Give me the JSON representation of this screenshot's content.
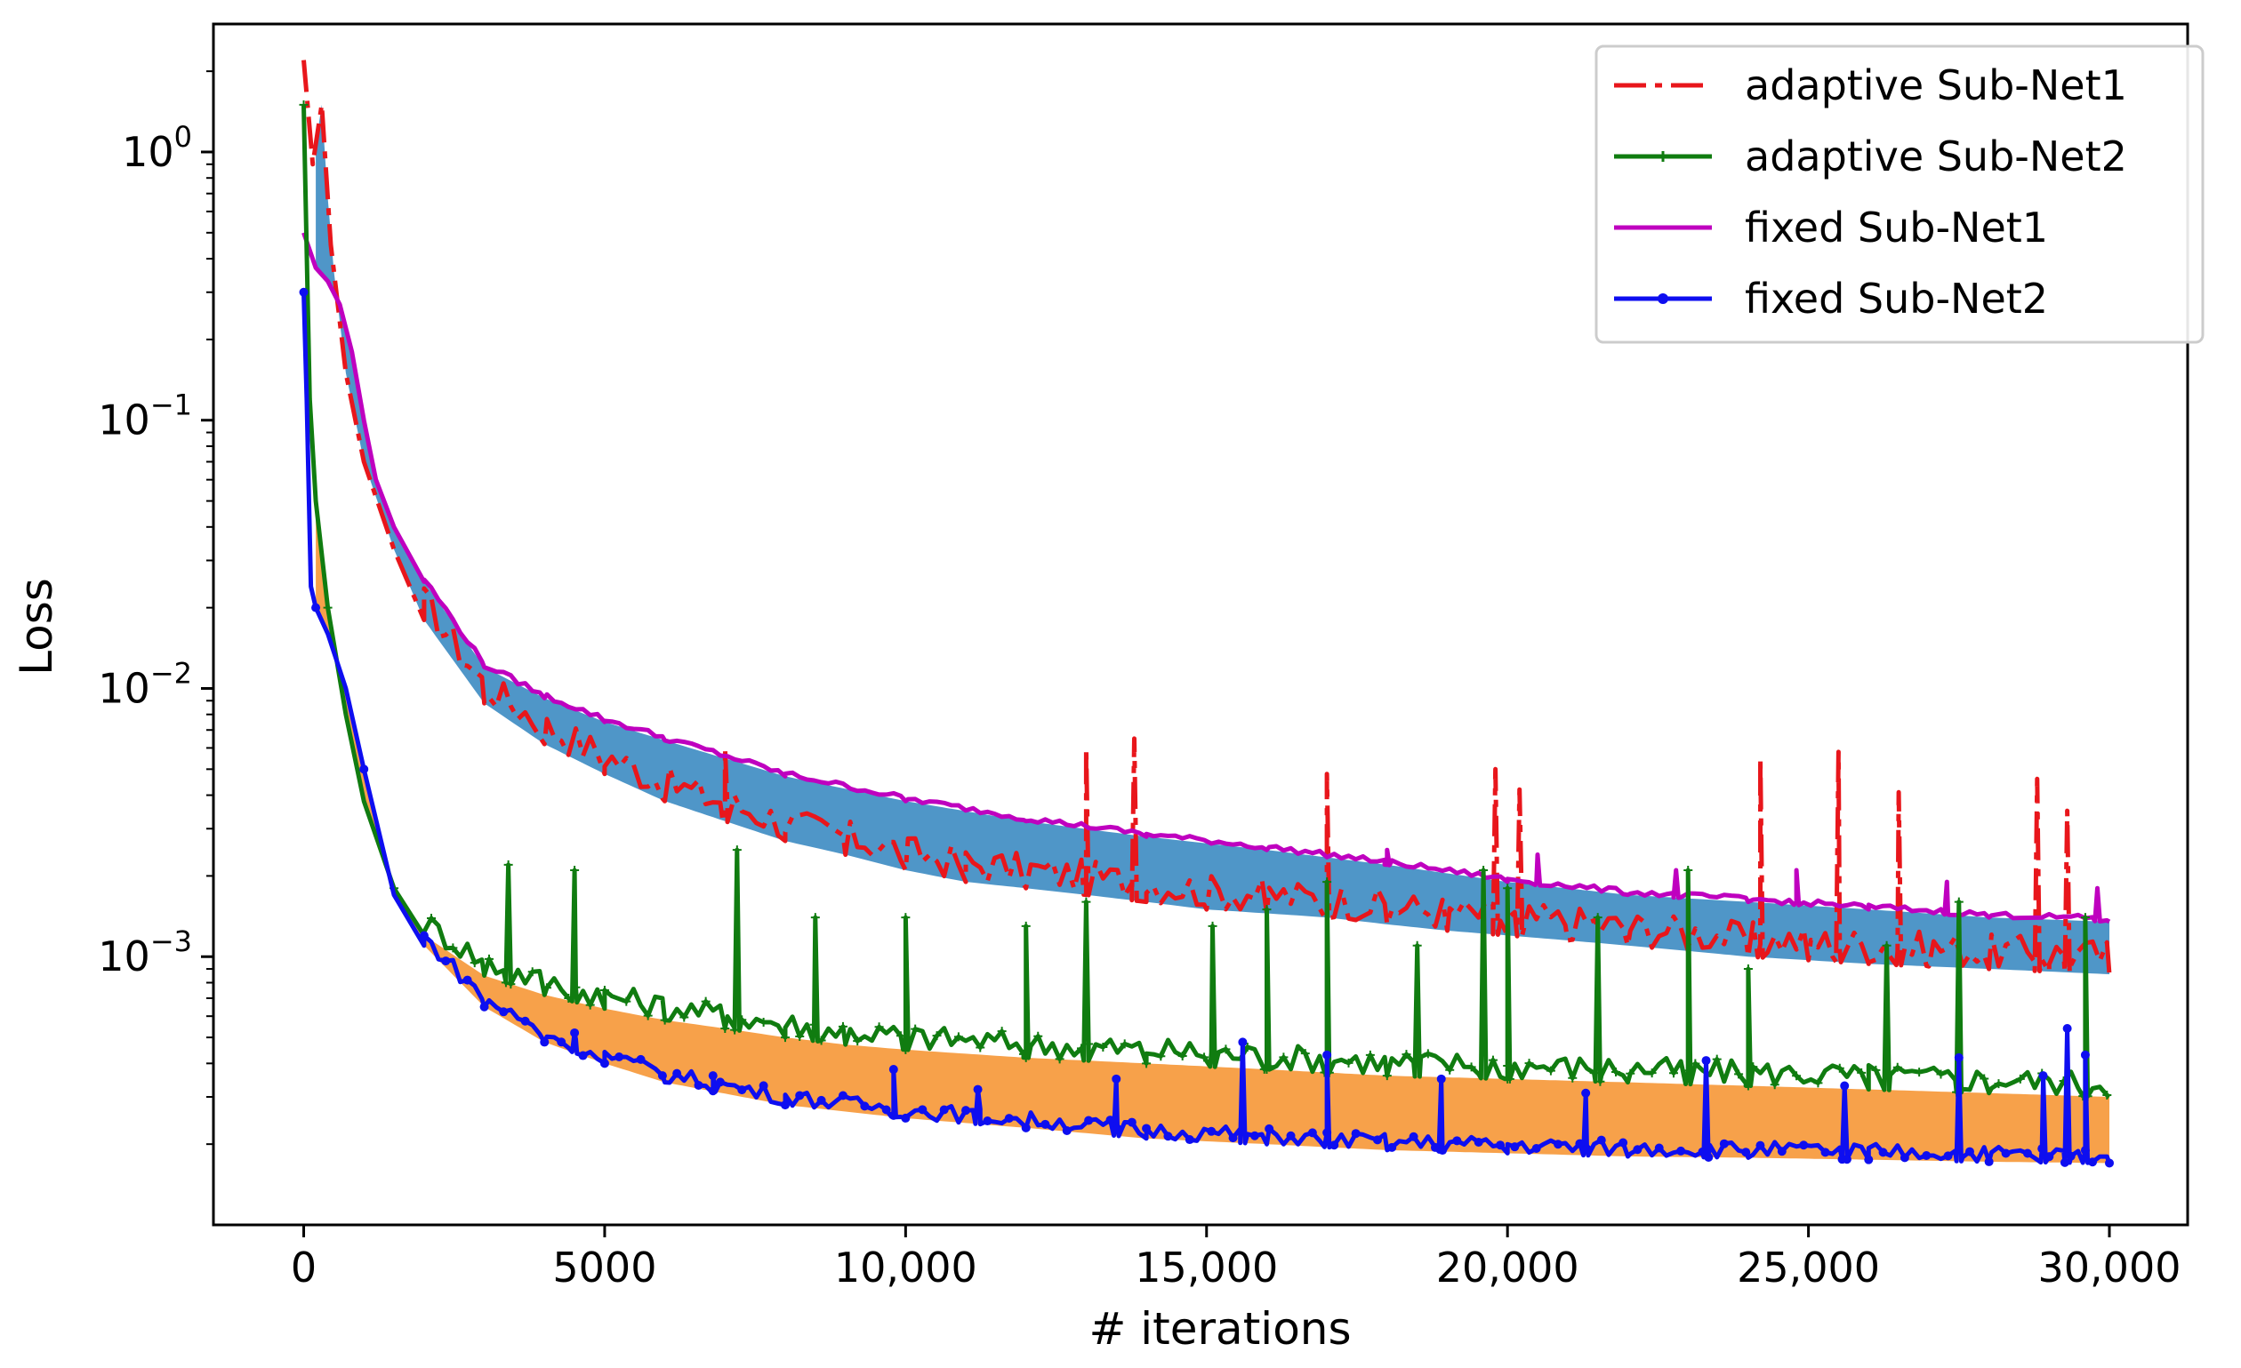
{
  "chart_data": {
    "type": "line",
    "xlabel": "# iterations",
    "ylabel": "Loss",
    "yscale": "log",
    "xlim": [
      -1500,
      31300
    ],
    "ylim": [
      0.0001,
      3.0
    ],
    "xticks": [
      {
        "value": 0,
        "label": "0"
      },
      {
        "value": 5000,
        "label": "5000"
      },
      {
        "value": 10000,
        "label": "10,000"
      },
      {
        "value": 15000,
        "label": "15,000"
      },
      {
        "value": 20000,
        "label": "20,000"
      },
      {
        "value": 25000,
        "label": "25,000"
      },
      {
        "value": 30000,
        "label": "30,000"
      }
    ],
    "yticks": [
      {
        "value": 1,
        "base": "10",
        "exp": "0"
      },
      {
        "value": 0.1,
        "base": "10",
        "exp": "−1"
      },
      {
        "value": 0.01,
        "base": "10",
        "exp": "−2"
      },
      {
        "value": 0.001,
        "base": "10",
        "exp": "−3"
      }
    ],
    "legend_position": "top-right",
    "series": [
      {
        "name": "adaptive Sub-Net1",
        "color": "#e8161b",
        "dash": "dashdot",
        "x": [
          0,
          150,
          300,
          450,
          700,
          1000,
          1500,
          2000,
          3000,
          4000,
          5000,
          6000,
          7000,
          8000,
          9000,
          10000,
          11000,
          12000,
          13000,
          14000,
          15000,
          16000,
          17000,
          18000,
          19000,
          20000,
          21000,
          22000,
          23000,
          24000,
          25000,
          26000,
          27000,
          28000,
          29000,
          30000
        ],
        "values": [
          2.2,
          0.9,
          1.5,
          0.45,
          0.15,
          0.07,
          0.033,
          0.018,
          0.0088,
          0.0062,
          0.0048,
          0.0038,
          0.0032,
          0.0027,
          0.0024,
          0.0021,
          0.0019,
          0.0018,
          0.0017,
          0.0016,
          0.0015,
          0.00145,
          0.0014,
          0.00132,
          0.00125,
          0.0012,
          0.00115,
          0.0011,
          0.00105,
          0.001,
          0.00097,
          0.00094,
          0.00092,
          0.0009,
          0.00088,
          0.00086
        ],
        "spikes": [
          [
            7000,
            0.006
          ],
          [
            13000,
            0.006
          ],
          [
            13800,
            0.0065
          ],
          [
            17000,
            0.0048
          ],
          [
            19800,
            0.005
          ],
          [
            20200,
            0.0042
          ],
          [
            24200,
            0.0055
          ],
          [
            25500,
            0.0058
          ],
          [
            26500,
            0.0041
          ],
          [
            28800,
            0.0046
          ],
          [
            29300,
            0.0035
          ]
        ]
      },
      {
        "name": "adaptive Sub-Net2",
        "color": "#107c10",
        "marker": "+",
        "x": [
          0,
          100,
          200,
          400,
          700,
          1000,
          1500,
          2000,
          3000,
          4000,
          5000,
          6000,
          7000,
          8000,
          9000,
          10000,
          12000,
          14000,
          16000,
          18000,
          20000,
          22000,
          24000,
          26000,
          28000,
          30000
        ],
        "values": [
          1.5,
          0.12,
          0.05,
          0.02,
          0.008,
          0.0038,
          0.0018,
          0.0012,
          0.00085,
          0.00072,
          0.00064,
          0.00058,
          0.00054,
          0.0005,
          0.00047,
          0.00045,
          0.00042,
          0.0004,
          0.00038,
          0.00036,
          0.00035,
          0.00034,
          0.00033,
          0.00032,
          0.00031,
          0.0003
        ],
        "spikes": [
          [
            3400,
            0.0022
          ],
          [
            4500,
            0.0021
          ],
          [
            7200,
            0.0025
          ],
          [
            8500,
            0.0014
          ],
          [
            10000,
            0.0014
          ],
          [
            12000,
            0.0013
          ],
          [
            13000,
            0.0016
          ],
          [
            15100,
            0.0013
          ],
          [
            16000,
            0.0015
          ],
          [
            17000,
            0.0019
          ],
          [
            18500,
            0.0011
          ],
          [
            19600,
            0.0021
          ],
          [
            20000,
            0.0018
          ],
          [
            21500,
            0.0014
          ],
          [
            23000,
            0.0021
          ],
          [
            24000,
            0.0009
          ],
          [
            26300,
            0.0011
          ],
          [
            27500,
            0.0016
          ],
          [
            29600,
            0.0014
          ]
        ]
      },
      {
        "name": "fixed Sub-Net1",
        "color": "#bf00bf",
        "x": [
          0,
          200,
          400,
          600,
          800,
          1000,
          1200,
          1500,
          2000,
          3000,
          4000,
          5000,
          6000,
          8000,
          10000,
          12000,
          14000,
          16000,
          18000,
          20000,
          22000,
          24000,
          26000,
          28000,
          30000
        ],
        "values": [
          0.5,
          0.37,
          0.33,
          0.27,
          0.18,
          0.1,
          0.06,
          0.04,
          0.025,
          0.012,
          0.0092,
          0.0075,
          0.0064,
          0.0047,
          0.0038,
          0.0032,
          0.0028,
          0.0025,
          0.0022,
          0.0019,
          0.0017,
          0.0016,
          0.0015,
          0.0014,
          0.00135
        ],
        "spikes": [
          [
            18000,
            0.0025
          ],
          [
            20500,
            0.0024
          ],
          [
            22800,
            0.0021
          ],
          [
            24800,
            0.0021
          ],
          [
            27300,
            0.0019
          ],
          [
            29800,
            0.0018
          ]
        ]
      },
      {
        "name": "fixed Sub-Net2",
        "color": "#0e0ef0",
        "marker": "star",
        "x": [
          0,
          50,
          120,
          200,
          400,
          700,
          1000,
          1500,
          2000,
          3000,
          4000,
          5000,
          6000,
          8000,
          10000,
          12000,
          14000,
          16000,
          18000,
          20000,
          22000,
          24000,
          26000,
          28000,
          30000
        ],
        "values": [
          0.3,
          0.12,
          0.024,
          0.02,
          0.016,
          0.01,
          0.005,
          0.0017,
          0.0011,
          0.00065,
          0.00048,
          0.0004,
          0.00034,
          0.00028,
          0.00025,
          0.00023,
          0.00021,
          0.0002,
          0.00019,
          0.000185,
          0.00018,
          0.000178,
          0.000175,
          0.000172,
          0.00017
        ],
        "spikes": [
          [
            4500,
            0.00052
          ],
          [
            6800,
            0.00036
          ],
          [
            9800,
            0.00038
          ],
          [
            11200,
            0.00032
          ],
          [
            13500,
            0.00035
          ],
          [
            15600,
            0.00048
          ],
          [
            17000,
            0.00043
          ],
          [
            18900,
            0.00035
          ],
          [
            21300,
            0.00031
          ],
          [
            23300,
            0.00041
          ],
          [
            25600,
            0.00033
          ],
          [
            27500,
            0.00042
          ],
          [
            28900,
            0.00036
          ],
          [
            29300,
            0.00054
          ],
          [
            29600,
            0.00043
          ]
        ]
      }
    ],
    "fills": [
      {
        "between": [
          "adaptive Sub-Net1",
          "fixed Sub-Net1"
        ],
        "color": "#4f96c8"
      },
      {
        "between": [
          "fixed Sub-Net2",
          "adaptive Sub-Net2"
        ],
        "color": "#f7a14a"
      }
    ]
  }
}
